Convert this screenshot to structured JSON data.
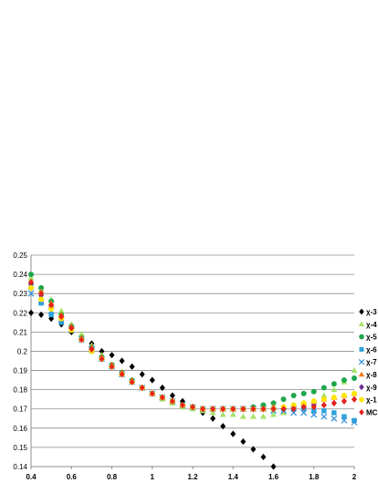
{
  "chart_data": {
    "type": "scatter",
    "title": "",
    "xlabel": "",
    "ylabel": "",
    "xlim": [
      0.4,
      2.0
    ],
    "ylim": [
      0.14,
      0.25
    ],
    "x_ticks": [
      "0.4",
      "0.6",
      "0.8",
      "1",
      "1.2",
      "1.4",
      "1.6",
      "1.8",
      "2"
    ],
    "y_ticks": [
      "0.14",
      "0.15",
      "0.16",
      "0.17",
      "0.18",
      "0.19",
      "0.2",
      "0.21",
      "0.22",
      "0.23",
      "0.24",
      "0.25"
    ],
    "grid": "horizontal",
    "legend": "right",
    "series": [
      {
        "name": "χ-3",
        "color": "#000000",
        "marker": "diamond",
        "x": [
          0.4,
          0.45,
          0.5,
          0.55,
          0.6,
          0.65,
          0.7,
          0.75,
          0.8,
          0.85,
          0.9,
          0.95,
          1.0,
          1.05,
          1.1,
          1.15,
          1.2,
          1.25,
          1.3,
          1.35,
          1.4,
          1.45,
          1.5,
          1.55,
          1.6
        ],
        "y": [
          0.22,
          0.219,
          0.217,
          0.214,
          0.21,
          0.207,
          0.204,
          0.2,
          0.198,
          0.195,
          0.192,
          0.188,
          0.185,
          0.181,
          0.177,
          0.174,
          0.171,
          0.168,
          0.165,
          0.161,
          0.157,
          0.153,
          0.149,
          0.145,
          0.14
        ]
      },
      {
        "name": "χ-4",
        "color": "#a6e36a",
        "marker": "triangle",
        "x": [
          0.4,
          0.45,
          0.5,
          0.55,
          0.6,
          0.65,
          0.7,
          0.75,
          0.8,
          0.85,
          0.9,
          0.95,
          1.0,
          1.05,
          1.1,
          1.15,
          1.2,
          1.25,
          1.3,
          1.35,
          1.4,
          1.45,
          1.5,
          1.55,
          1.6,
          1.65,
          1.7,
          1.75,
          1.8,
          1.85,
          1.9,
          1.95,
          2.0
        ],
        "y": [
          0.238,
          0.232,
          0.227,
          0.221,
          0.214,
          0.209,
          0.203,
          0.198,
          0.193,
          0.189,
          0.185,
          0.181,
          0.178,
          0.175,
          0.173,
          0.171,
          0.17,
          0.169,
          0.168,
          0.167,
          0.167,
          0.166,
          0.166,
          0.166,
          0.167,
          0.168,
          0.17,
          0.172,
          0.174,
          0.177,
          0.18,
          0.184,
          0.19
        ]
      },
      {
        "name": "χ-5",
        "color": "#1fa64a",
        "marker": "circle",
        "x": [
          0.4,
          0.45,
          0.5,
          0.55,
          0.6,
          0.65,
          0.7,
          0.75,
          0.8,
          0.85,
          0.9,
          0.95,
          1.0,
          1.05,
          1.1,
          1.15,
          1.2,
          1.25,
          1.3,
          1.35,
          1.4,
          1.45,
          1.5,
          1.55,
          1.6,
          1.65,
          1.7,
          1.75,
          1.8,
          1.85,
          1.9,
          1.95,
          2.0
        ],
        "y": [
          0.24,
          0.233,
          0.226,
          0.219,
          0.213,
          0.207,
          0.202,
          0.197,
          0.193,
          0.189,
          0.185,
          0.181,
          0.178,
          0.176,
          0.174,
          0.172,
          0.171,
          0.17,
          0.17,
          0.17,
          0.17,
          0.17,
          0.171,
          0.172,
          0.173,
          0.175,
          0.177,
          0.178,
          0.179,
          0.181,
          0.183,
          0.185,
          0.186
        ]
      },
      {
        "name": "χ-6",
        "color": "#2ea3dc",
        "marker": "square",
        "x": [
          0.4,
          0.45,
          0.5,
          0.55,
          0.6,
          0.65,
          0.7,
          0.75,
          0.8,
          0.85,
          0.9,
          0.95,
          1.0,
          1.05,
          1.1,
          1.15,
          1.2,
          1.25,
          1.3,
          1.35,
          1.4,
          1.45,
          1.5,
          1.55,
          1.6,
          1.65,
          1.7,
          1.75,
          1.8,
          1.85,
          1.9,
          1.95,
          2.0
        ],
        "y": [
          0.233,
          0.225,
          0.219,
          0.215,
          0.211,
          0.206,
          0.2,
          0.196,
          0.192,
          0.188,
          0.184,
          0.181,
          0.178,
          0.176,
          0.174,
          0.172,
          0.171,
          0.17,
          0.17,
          0.17,
          0.17,
          0.17,
          0.17,
          0.17,
          0.17,
          0.17,
          0.17,
          0.17,
          0.169,
          0.169,
          0.168,
          0.166,
          0.164
        ]
      },
      {
        "name": "χ-7",
        "color": "#2f8fd8",
        "marker": "x",
        "x": [
          0.4,
          0.45,
          0.5,
          0.55,
          0.6,
          0.65,
          0.7,
          0.75,
          0.8,
          0.85,
          0.9,
          0.95,
          1.0,
          1.05,
          1.1,
          1.15,
          1.2,
          1.25,
          1.3,
          1.35,
          1.4,
          1.45,
          1.5,
          1.55,
          1.6,
          1.65,
          1.7,
          1.75,
          1.8,
          1.85,
          1.9,
          1.95,
          2.0
        ],
        "y": [
          0.23,
          0.226,
          0.221,
          0.216,
          0.211,
          0.206,
          0.201,
          0.196,
          0.192,
          0.188,
          0.184,
          0.181,
          0.178,
          0.176,
          0.174,
          0.172,
          0.171,
          0.17,
          0.17,
          0.17,
          0.17,
          0.17,
          0.17,
          0.17,
          0.169,
          0.169,
          0.168,
          0.168,
          0.167,
          0.166,
          0.165,
          0.164,
          0.163
        ]
      },
      {
        "name": "χ-8",
        "color": "#f07d1a",
        "marker": "triangle",
        "x": [
          0.4,
          0.45,
          0.5,
          0.55,
          0.6,
          0.65,
          0.7,
          0.75,
          0.8,
          0.85,
          0.9,
          0.95,
          1.0,
          1.05,
          1.1,
          1.15,
          1.2,
          1.25,
          1.3,
          1.35,
          1.4,
          1.45,
          1.5,
          1.55,
          1.6,
          1.65,
          1.7,
          1.75,
          1.8,
          1.85,
          1.9,
          1.95,
          2.0
        ],
        "y": [
          0.236,
          0.231,
          0.225,
          0.219,
          0.213,
          0.207,
          0.202,
          0.197,
          0.193,
          0.189,
          0.185,
          0.181,
          0.178,
          0.176,
          0.174,
          0.172,
          0.171,
          0.17,
          0.17,
          0.17,
          0.17,
          0.17,
          0.17,
          0.17,
          0.171,
          0.171,
          0.172,
          0.173,
          0.174,
          0.175,
          0.176,
          0.177,
          0.178
        ]
      },
      {
        "name": "χ-9",
        "color": "#6a2c91",
        "marker": "diamond",
        "x": [
          0.4,
          0.45,
          0.5,
          0.55,
          0.6,
          0.65,
          0.7,
          0.75,
          0.8,
          0.85,
          0.9,
          0.95,
          1.0,
          1.05,
          1.1,
          1.15,
          1.2,
          1.25,
          1.3,
          1.35,
          1.4,
          1.45,
          1.5,
          1.55,
          1.6,
          1.65,
          1.7,
          1.75,
          1.8,
          1.85,
          1.9,
          1.95,
          2.0
        ],
        "y": [
          0.235,
          0.229,
          0.223,
          0.217,
          0.212,
          0.206,
          0.201,
          0.196,
          0.192,
          0.188,
          0.184,
          0.181,
          0.178,
          0.176,
          0.174,
          0.172,
          0.171,
          0.17,
          0.17,
          0.17,
          0.17,
          0.17,
          0.17,
          0.17,
          0.17,
          0.17,
          0.171,
          0.171,
          0.172,
          0.172,
          0.173,
          0.174,
          0.175
        ]
      },
      {
        "name": "χ-1",
        "color": "#ffe600",
        "marker": "circle",
        "x": [
          0.4,
          0.45,
          0.5,
          0.55,
          0.6,
          0.65,
          0.7,
          0.75,
          0.8,
          0.85,
          0.9,
          0.95,
          1.0,
          1.05,
          1.1,
          1.15,
          1.2,
          1.25,
          1.3,
          1.35,
          1.4,
          1.45,
          1.5,
          1.55,
          1.6,
          1.65,
          1.7,
          1.75,
          1.8,
          1.85,
          1.9,
          1.95,
          2.0
        ],
        "y": [
          0.233,
          0.227,
          0.222,
          0.217,
          0.211,
          0.206,
          0.2,
          0.196,
          0.192,
          0.188,
          0.184,
          0.181,
          0.178,
          0.176,
          0.174,
          0.172,
          0.171,
          0.17,
          0.17,
          0.17,
          0.17,
          0.17,
          0.17,
          0.17,
          0.17,
          0.171,
          0.172,
          0.173,
          0.174,
          0.175,
          0.176,
          0.177,
          0.178
        ]
      },
      {
        "name": "MC",
        "color": "#e8231c",
        "marker": "diamond",
        "x": [
          0.4,
          0.45,
          0.5,
          0.55,
          0.6,
          0.65,
          0.7,
          0.75,
          0.8,
          0.85,
          0.9,
          0.95,
          1.0,
          1.05,
          1.1,
          1.15,
          1.2,
          1.25,
          1.3,
          1.35,
          1.4,
          1.45,
          1.5,
          1.55,
          1.6,
          1.65,
          1.7,
          1.75,
          1.8,
          1.85,
          1.9,
          1.95,
          2.0
        ],
        "y": [
          0.236,
          0.23,
          0.224,
          0.218,
          0.212,
          0.206,
          0.201,
          0.196,
          0.192,
          0.188,
          0.184,
          0.181,
          0.178,
          0.176,
          0.174,
          0.172,
          0.171,
          0.17,
          0.17,
          0.17,
          0.17,
          0.17,
          0.17,
          0.17,
          0.17,
          0.17,
          0.17,
          0.171,
          0.171,
          0.172,
          0.173,
          0.174,
          0.175
        ]
      }
    ]
  }
}
